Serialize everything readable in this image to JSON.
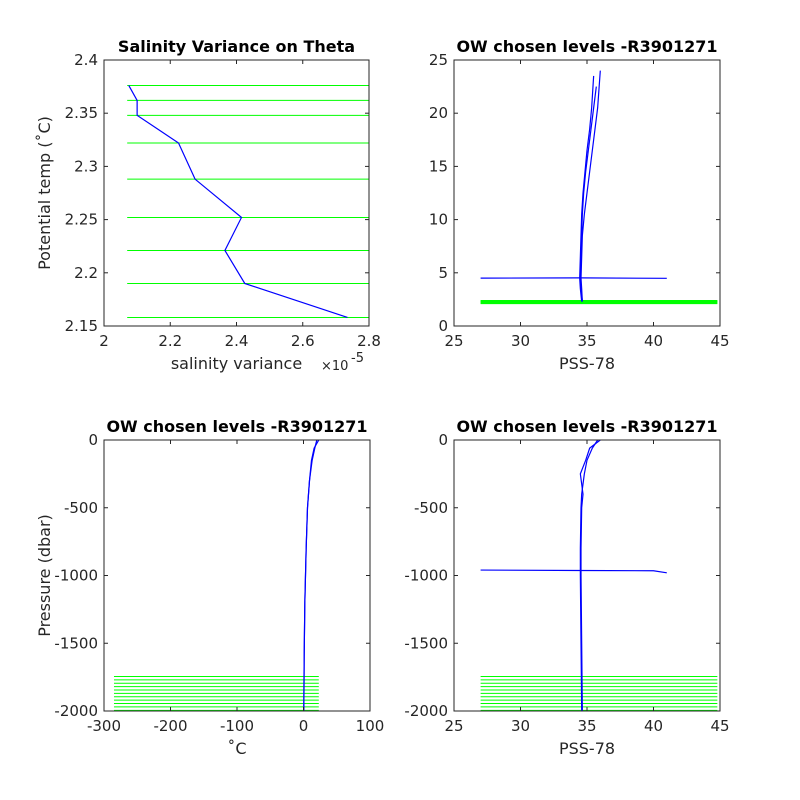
{
  "colors": {
    "profile": "#0000ff",
    "levels": "#00ff00",
    "axes": "#262626"
  },
  "chart_data": [
    {
      "id": "top-left",
      "type": "line",
      "title": "Salinity Variance on Theta",
      "xlabel": "salinity variance",
      "x_exponent": "×10",
      "x_exponent_power": "-5",
      "ylabel": "Potential temp (˚C)",
      "xlim": [
        2.0,
        2.8
      ],
      "ylim": [
        2.15,
        2.4
      ],
      "xticks": [
        2.0,
        2.2,
        2.4,
        2.6,
        2.8
      ],
      "xticklabels": [
        "2",
        "2.2",
        "2.4",
        "2.6",
        "2.8"
      ],
      "yticks": [
        2.15,
        2.2,
        2.25,
        2.3,
        2.35,
        2.4
      ],
      "yticklabels": [
        "2.15",
        "2.2",
        "2.25",
        "2.3",
        "2.35",
        "2.4"
      ],
      "series": [
        {
          "color": "#0000ff",
          "x": [
            2.735,
            2.425,
            2.365,
            2.415,
            2.275,
            2.225,
            2.1,
            2.1,
            2.1,
            2.075
          ],
          "y": [
            2.158,
            2.19,
            2.221,
            2.252,
            2.288,
            2.322,
            2.348,
            2.362,
            2.362,
            2.376
          ]
        }
      ],
      "hlines": {
        "color": "#00ff00",
        "x_from": 2.07,
        "x_to": 2.8,
        "y": [
          2.158,
          2.19,
          2.221,
          2.252,
          2.288,
          2.322,
          2.348,
          2.362,
          2.376
        ]
      }
    },
    {
      "id": "top-right",
      "type": "line",
      "title": "OW chosen levels -R3901271",
      "xlabel": "PSS-78",
      "ylabel": "",
      "xlim": [
        25,
        45
      ],
      "ylim": [
        0,
        25
      ],
      "xticks": [
        25,
        30,
        35,
        40,
        45
      ],
      "xticklabels": [
        "25",
        "30",
        "35",
        "40",
        "45"
      ],
      "yticks": [
        0,
        5,
        10,
        15,
        20,
        25
      ],
      "yticklabels": [
        "0",
        "5",
        "10",
        "15",
        "20",
        "25"
      ],
      "series": [
        {
          "color": "#0000ff",
          "x": [
            34.65,
            34.55,
            34.5,
            34.55,
            34.6,
            34.65,
            34.75,
            34.9,
            35.1,
            35.3,
            35.5,
            35.7
          ],
          "y": [
            2.3,
            3.5,
            4.5,
            6.5,
            8.5,
            10.5,
            12.5,
            14.5,
            16.5,
            18.5,
            20.5,
            22.5
          ]
        },
        {
          "color": "#0000ff",
          "x": [
            34.65,
            34.6,
            34.55,
            34.6,
            34.65,
            34.8,
            35.0,
            35.2,
            35.4,
            35.6,
            35.8,
            36.0
          ],
          "y": [
            2.3,
            3.5,
            4.5,
            6.5,
            8.5,
            10.5,
            12.5,
            14.5,
            16.5,
            18.5,
            20.5,
            24.0
          ]
        },
        {
          "color": "#0000ff",
          "x": [
            34.6,
            34.5,
            34.45,
            34.5,
            34.55,
            34.6,
            34.7,
            34.85,
            35.0,
            35.2,
            35.35,
            35.5
          ],
          "y": [
            2.3,
            3.5,
            4.5,
            6.5,
            8.5,
            10.5,
            12.5,
            14.5,
            16.5,
            18.5,
            20.5,
            23.5
          ]
        },
        {
          "color": "#0000ff",
          "x": [
            27.0,
            34.5,
            41.0
          ],
          "y": [
            4.5,
            4.52,
            4.48
          ]
        }
      ],
      "hlines": {
        "color": "#00ff00",
        "x_from": 27,
        "x_to": 44.8,
        "y": [
          2.1,
          2.15,
          2.2,
          2.25,
          2.3,
          2.35,
          2.4
        ]
      }
    },
    {
      "id": "bottom-left",
      "type": "line",
      "title": "OW chosen levels -R3901271",
      "xlabel": "˚C",
      "ylabel": "Pressure (dbar)",
      "xlim": [
        -300,
        100
      ],
      "ylim": [
        -2000,
        0
      ],
      "xticks": [
        -300,
        -200,
        -100,
        0,
        100
      ],
      "xticklabels": [
        "-300",
        "-200",
        "-100",
        "0",
        "100"
      ],
      "yticks": [
        -2000,
        -1500,
        -1000,
        -500,
        0
      ],
      "yticklabels": [
        "-2000",
        "-1500",
        "-1000",
        "-500",
        "0"
      ],
      "series": [
        {
          "color": "#0000ff",
          "x": [
            0.5,
            1,
            2,
            4,
            6,
            9,
            13,
            17,
            20
          ],
          "y": [
            -2000,
            -1600,
            -1200,
            -800,
            -500,
            -300,
            -150,
            -60,
            0
          ]
        },
        {
          "color": "#0000ff",
          "x": [
            0.5,
            1,
            2,
            4,
            6,
            9,
            12,
            16,
            23
          ],
          "y": [
            -2000,
            -1600,
            -1200,
            -800,
            -500,
            -300,
            -150,
            -60,
            0
          ]
        }
      ],
      "hlines": {
        "color": "#00ff00",
        "x_from": -285,
        "x_to": 23,
        "y": [
          -1745,
          -1770,
          -1795,
          -1820,
          -1845,
          -1870,
          -1895,
          -1920,
          -1945,
          -1970,
          -1995
        ]
      }
    },
    {
      "id": "bottom-right",
      "type": "line",
      "title": "OW chosen levels -R3901271",
      "xlabel": "PSS-78",
      "ylabel": "",
      "xlim": [
        25,
        45
      ],
      "ylim": [
        -2000,
        0
      ],
      "xticks": [
        25,
        30,
        35,
        40,
        45
      ],
      "xticklabels": [
        "25",
        "30",
        "35",
        "40",
        "45"
      ],
      "yticks": [
        -2000,
        -1500,
        -1000,
        -500,
        0
      ],
      "yticklabels": [
        "-2000",
        "-1500",
        "-1000",
        "-500",
        "0"
      ],
      "series": [
        {
          "color": "#0000ff",
          "x": [
            34.6,
            34.55,
            34.5,
            34.5,
            34.55,
            34.6,
            34.8,
            35.0,
            35.4,
            35.8
          ],
          "y": [
            -2000,
            -1500,
            -1000,
            -800,
            -500,
            -400,
            -250,
            -150,
            -60,
            0
          ]
        },
        {
          "color": "#0000ff",
          "x": [
            34.65,
            34.6,
            34.55,
            34.55,
            34.6,
            34.7,
            34.5,
            34.9,
            35.2,
            36.0
          ],
          "y": [
            -2000,
            -1500,
            -1000,
            -800,
            -500,
            -400,
            -250,
            -150,
            -60,
            0
          ]
        },
        {
          "color": "#0000ff",
          "x": [
            27.0,
            34.5,
            40.0,
            41.0
          ],
          "y": [
            -960,
            -963,
            -965,
            -980
          ]
        }
      ],
      "hlines": {
        "color": "#00ff00",
        "x_from": 27,
        "x_to": 44.8,
        "y": [
          -1745,
          -1770,
          -1795,
          -1820,
          -1845,
          -1870,
          -1895,
          -1920,
          -1945,
          -1970,
          -1995
        ]
      }
    }
  ]
}
